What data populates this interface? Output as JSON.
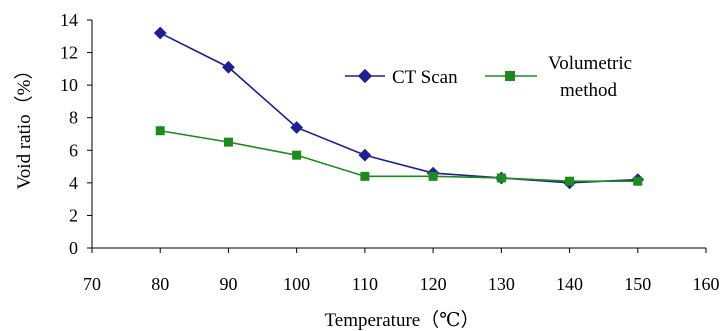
{
  "chart_data": {
    "type": "line",
    "title": "",
    "xlabel": "Temperature（℃）",
    "ylabel": "Void ratio（%）",
    "xlim": [
      70,
      160
    ],
    "ylim": [
      0,
      14
    ],
    "x_ticks": [
      "70",
      "80",
      "90",
      "100",
      "110",
      "120",
      "130",
      "140",
      "150",
      "160"
    ],
    "y_ticks": [
      "0",
      "2",
      "4",
      "6",
      "8",
      "10",
      "12",
      "14"
    ],
    "grid": false,
    "legend_position": "top-right",
    "x": [
      80,
      90,
      100,
      110,
      120,
      130,
      140,
      150
    ],
    "series": [
      {
        "name": "CT Scan",
        "marker": "diamond",
        "color": "#1f1f8f",
        "values": [
          13.2,
          11.1,
          7.4,
          5.7,
          4.6,
          4.3,
          4.0,
          4.2
        ]
      },
      {
        "name": "Volumetric method",
        "legend_lines": [
          "Volumetric",
          "method"
        ],
        "marker": "square",
        "color": "#1e8a1e",
        "values": [
          7.2,
          6.5,
          5.7,
          4.4,
          4.4,
          4.3,
          4.1,
          4.1
        ]
      }
    ]
  }
}
